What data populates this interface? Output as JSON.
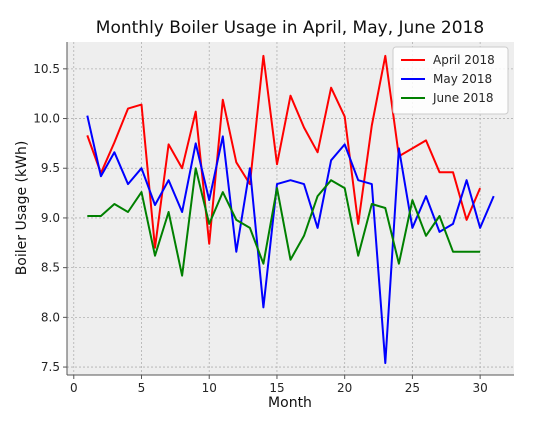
{
  "chart_data": {
    "type": "line",
    "title": "Monthly Boiler Usage in April, May, June 2018",
    "xlabel": "Month",
    "ylabel": "Boiler Usage (kWh)",
    "xlim": [
      -0.5,
      32.5
    ],
    "ylim": [
      7.42,
      10.77
    ],
    "xticks": [
      0,
      5,
      10,
      15,
      20,
      25,
      30
    ],
    "yticks": [
      7.5,
      8.0,
      8.5,
      9.0,
      9.5,
      10.0,
      10.5
    ],
    "grid": true,
    "legend_position": "top-right",
    "series": [
      {
        "name": "April 2018",
        "color": "#ff0000",
        "x": [
          1,
          2,
          3,
          4,
          5,
          6,
          7,
          8,
          9,
          10,
          11,
          12,
          13,
          14,
          15,
          16,
          17,
          18,
          19,
          20,
          21,
          22,
          23,
          24,
          25,
          26,
          27,
          28,
          29,
          30
        ],
        "values": [
          9.83,
          9.45,
          9.76,
          10.1,
          10.14,
          8.7,
          9.74,
          9.5,
          10.07,
          8.74,
          10.19,
          9.56,
          9.34,
          10.63,
          9.54,
          10.23,
          9.91,
          9.66,
          10.31,
          10.02,
          8.94,
          9.93,
          10.63,
          9.62,
          9.7,
          9.78,
          9.46,
          9.46,
          8.98,
          9.3
        ]
      },
      {
        "name": "May 2018",
        "color": "#0000ff",
        "x": [
          1,
          2,
          3,
          4,
          5,
          6,
          7,
          8,
          9,
          10,
          11,
          12,
          13,
          14,
          15,
          16,
          17,
          18,
          19,
          20,
          21,
          22,
          23,
          24,
          25,
          26,
          27,
          28,
          29,
          30,
          31
        ],
        "values": [
          10.03,
          9.42,
          9.66,
          9.34,
          9.5,
          9.13,
          9.38,
          9.06,
          9.75,
          9.18,
          9.82,
          8.66,
          9.5,
          8.1,
          9.34,
          9.38,
          9.34,
          8.9,
          9.58,
          9.74,
          9.38,
          9.34,
          7.54,
          9.7,
          8.9,
          9.22,
          8.86,
          8.94,
          9.38,
          8.9,
          9.22
        ]
      },
      {
        "name": "June 2018",
        "color": "#008000",
        "x": [
          1,
          2,
          3,
          4,
          5,
          6,
          7,
          8,
          9,
          10,
          11,
          12,
          13,
          14,
          15,
          16,
          17,
          18,
          19,
          20,
          21,
          22,
          23,
          24,
          25,
          26,
          27,
          28,
          29,
          30
        ],
        "values": [
          9.02,
          9.02,
          9.14,
          9.06,
          9.26,
          8.62,
          9.06,
          8.42,
          9.5,
          8.94,
          9.26,
          8.98,
          8.9,
          8.54,
          9.3,
          8.58,
          8.82,
          9.22,
          9.38,
          9.3,
          8.62,
          9.14,
          9.1,
          8.54,
          9.18,
          8.82,
          9.02,
          8.66,
          8.66,
          8.66
        ]
      }
    ]
  }
}
